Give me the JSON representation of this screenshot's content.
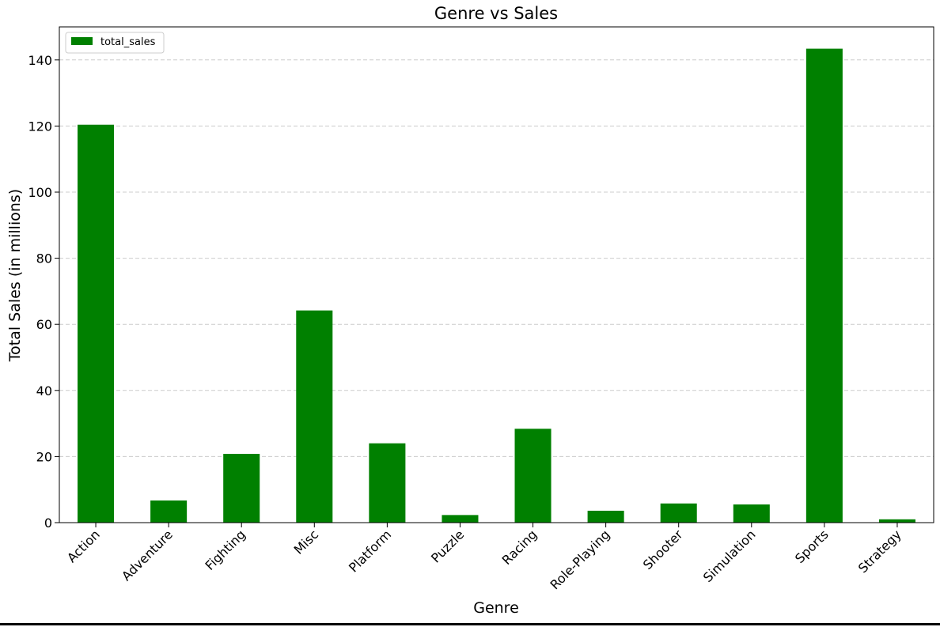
{
  "chart_data": {
    "type": "bar",
    "title": "Genre vs Sales",
    "xlabel": "Genre",
    "ylabel": "Total Sales (in millions)",
    "categories": [
      "Action",
      "Adventure",
      "Fighting",
      "Misc",
      "Platform",
      "Puzzle",
      "Racing",
      "Role-Playing",
      "Shooter",
      "Simulation",
      "Sports",
      "Strategy"
    ],
    "series": [
      {
        "name": "total_sales",
        "values": [
          120.4,
          6.7,
          20.8,
          64.2,
          24.0,
          2.3,
          28.4,
          3.6,
          5.8,
          5.5,
          143.4,
          1.0
        ]
      }
    ],
    "ylim": [
      0,
      150
    ],
    "yticks": [
      0,
      20,
      40,
      60,
      80,
      100,
      120,
      140
    ],
    "grid": "y-dashed",
    "legend": "top-left",
    "bar_color": "#008000",
    "grid_color": "#cccccc"
  }
}
